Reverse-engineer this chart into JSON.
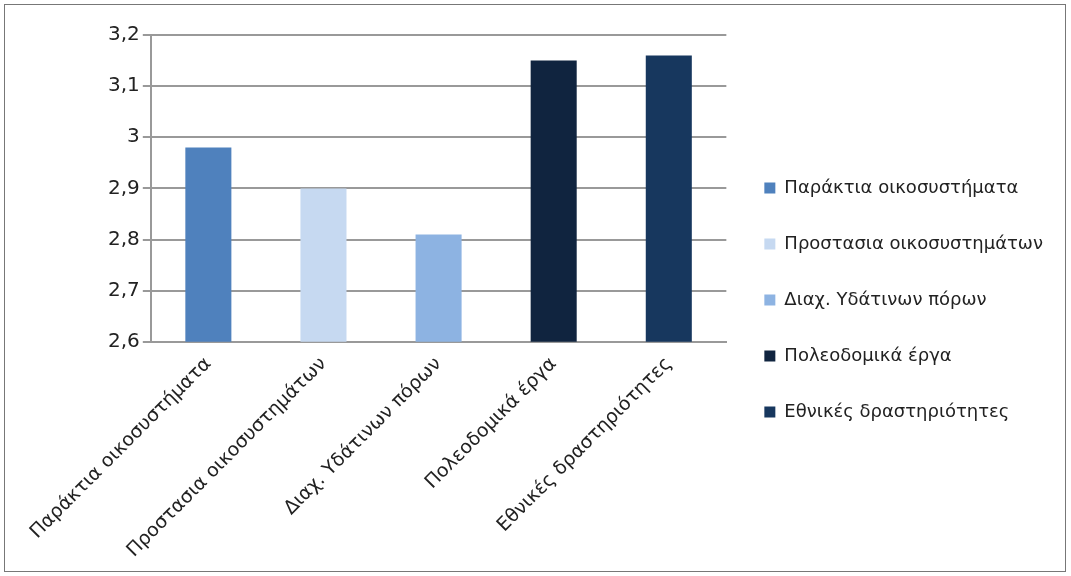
{
  "chart_data": {
    "type": "bar",
    "categories": [
      "Παράκτια οικοσυστήματα",
      "Προστασια οικοσυστημάτων",
      "Διαχ. Υδάτινων πόρων",
      "Πολεοδομικά έργα",
      "Εθνικές δραστηριότητες"
    ],
    "series": [
      {
        "name": "Παράκτια οικοσυστήματα",
        "color": "#4f81bd",
        "values": [
          2.98,
          null,
          null,
          null,
          null
        ]
      },
      {
        "name": "Προστασια οικοσυστημάτων",
        "color": "#c6d9f1",
        "values": [
          null,
          2.9,
          null,
          null,
          null
        ]
      },
      {
        "name": "Διαχ. Υδάτινων πόρων",
        "color": "#8db3e2",
        "values": [
          null,
          null,
          2.81,
          null,
          null
        ]
      },
      {
        "name": "Πολεοδομικά έργα",
        "color": "#10243f",
        "values": [
          null,
          null,
          null,
          3.15,
          null
        ]
      },
      {
        "name": "Εθνικές δραστηριότητες",
        "color": "#17375e",
        "values": [
          null,
          null,
          null,
          null,
          3.16
        ]
      }
    ],
    "ylim": [
      2.6,
      3.2
    ],
    "yticks": [
      {
        "value": 2.6,
        "label": "2,6"
      },
      {
        "value": 2.7,
        "label": "2,7"
      },
      {
        "value": 2.8,
        "label": "2,8"
      },
      {
        "value": 2.9,
        "label": "2,9"
      },
      3,
      {
        "value": 3.1,
        "label": "3,1"
      },
      {
        "value": 3.2,
        "label": "3,2"
      }
    ],
    "grid": "y",
    "legend": "right"
  }
}
